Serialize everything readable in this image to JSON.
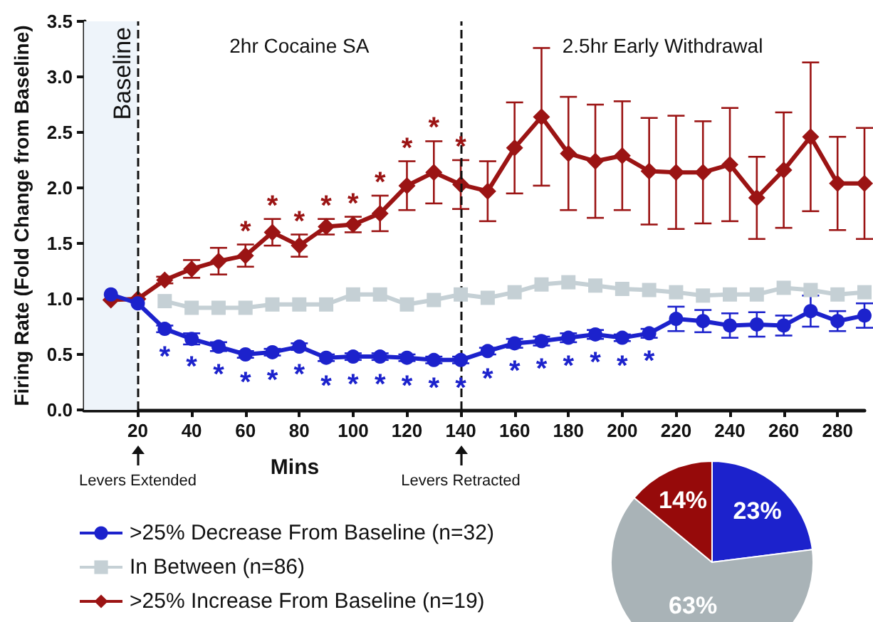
{
  "chart_data": [
    {
      "type": "line",
      "xlabel": "Mins",
      "ylabel": "Firing Rate (Fold Change from Baseline)",
      "x": [
        10,
        20,
        30,
        40,
        50,
        60,
        70,
        80,
        90,
        100,
        110,
        120,
        130,
        140,
        150,
        160,
        170,
        180,
        190,
        200,
        210,
        220,
        230,
        240,
        250,
        260,
        270,
        280,
        290
      ],
      "series": [
        {
          "name": ">25% Decrease From Baseline (n=32)",
          "color": "#1c22cc",
          "marker": "circle",
          "values": [
            1.04,
            0.96,
            0.73,
            0.64,
            0.57,
            0.5,
            0.52,
            0.57,
            0.47,
            0.48,
            0.48,
            0.47,
            0.45,
            0.45,
            0.53,
            0.6,
            0.62,
            0.65,
            0.68,
            0.65,
            0.69,
            0.82,
            0.8,
            0.76,
            0.77,
            0.76,
            0.89,
            0.8,
            0.85
          ],
          "errors": [
            null,
            null,
            0.03,
            0.05,
            0.04,
            0.03,
            0.03,
            0.03,
            0.03,
            0.03,
            0.03,
            0.03,
            0.03,
            0.03,
            0.03,
            0.04,
            0.04,
            0.04,
            0.04,
            0.03,
            0.04,
            0.11,
            0.1,
            0.11,
            0.11,
            0.09,
            0.14,
            0.09,
            0.11
          ]
        },
        {
          "name": "In Between (n=86)",
          "color": "#c5d0d5",
          "marker": "square",
          "values": [
            null,
            null,
            0.98,
            0.92,
            0.92,
            0.92,
            0.95,
            0.95,
            0.95,
            1.04,
            1.04,
            0.95,
            0.99,
            1.04,
            1.01,
            1.06,
            1.13,
            1.15,
            1.12,
            1.09,
            1.08,
            1.06,
            1.03,
            1.04,
            1.04,
            1.1,
            1.08,
            1.04,
            1.06
          ]
        },
        {
          "name": ">25% Increase From Baseline (n=19)",
          "color": "#9b1414",
          "marker": "diamond",
          "values": [
            0.99,
            1.0,
            1.17,
            1.27,
            1.34,
            1.39,
            1.6,
            1.48,
            1.65,
            1.67,
            1.77,
            2.02,
            2.14,
            2.03,
            1.97,
            2.36,
            2.64,
            2.31,
            2.24,
            2.29,
            2.15,
            2.14,
            2.14,
            2.21,
            1.91,
            2.16,
            2.46,
            2.04,
            2.04
          ],
          "errors": [
            null,
            null,
            0.03,
            0.08,
            0.12,
            0.1,
            0.12,
            0.1,
            0.07,
            0.07,
            0.16,
            0.22,
            0.28,
            0.22,
            0.27,
            0.41,
            0.62,
            0.51,
            0.51,
            0.49,
            0.48,
            0.51,
            0.46,
            0.51,
            0.37,
            0.52,
            0.67,
            0.42,
            0.5
          ]
        }
      ],
      "xlim": [
        0,
        290
      ],
      "xticks": [
        20,
        40,
        60,
        80,
        100,
        120,
        140,
        160,
        180,
        200,
        220,
        240,
        260,
        280
      ],
      "ylim": [
        0,
        3.5
      ],
      "yticks": [
        {
          "value": 0,
          "label": "0.0"
        },
        0.5,
        {
          "value": 1,
          "label": "1.0"
        },
        1.5,
        {
          "value": 2,
          "label": "2.0"
        },
        2.5,
        {
          "value": 3,
          "label": "3.0"
        },
        3.5
      ],
      "ref_lines": [
        {
          "axis": "x",
          "value": 20,
          "line_style": "dashed"
        },
        {
          "axis": "x",
          "value": 140,
          "line_style": "dashed"
        }
      ],
      "bands": [
        {
          "axis": "x",
          "from": 0,
          "to": 20,
          "label": "Baseline",
          "color": "#eef4fa"
        }
      ],
      "legend": "bottom left",
      "grid": false,
      "line_style": "solid",
      "annotations": [
        "2hr Cocaine SA",
        "2.5hr Early Withdrawal",
        "Levers Extended",
        "Levers Retracted",
        {
          "text": "*",
          "x": 60,
          "y": 1.39
        },
        {
          "text": "*",
          "x": 70,
          "y": 1.6
        },
        {
          "text": "*",
          "x": 80,
          "y": 1.48
        },
        {
          "text": "*",
          "x": 90,
          "y": 1.65
        },
        {
          "text": "*",
          "x": 100,
          "y": 1.67
        },
        {
          "text": "*",
          "x": 110,
          "y": 1.77
        },
        {
          "text": "*",
          "x": 120,
          "y": 2.02
        },
        {
          "text": "*",
          "x": 130,
          "y": 2.14
        },
        {
          "text": "*",
          "x": 140,
          "y": 2.03
        },
        {
          "text": "*",
          "x": 30,
          "y": 0.73
        },
        {
          "text": "*",
          "x": 40,
          "y": 0.64
        },
        {
          "text": "*",
          "x": 50,
          "y": 0.57
        },
        {
          "text": "*",
          "x": 60,
          "y": 0.5
        },
        {
          "text": "*",
          "x": 70,
          "y": 0.52
        },
        {
          "text": "*",
          "x": 80,
          "y": 0.57
        },
        {
          "text": "*",
          "x": 90,
          "y": 0.47
        },
        {
          "text": "*",
          "x": 100,
          "y": 0.48
        },
        {
          "text": "*",
          "x": 110,
          "y": 0.48
        },
        {
          "text": "*",
          "x": 120,
          "y": 0.47
        },
        {
          "text": "*",
          "x": 130,
          "y": 0.45
        },
        {
          "text": "*",
          "x": 140,
          "y": 0.45
        },
        {
          "text": "*",
          "x": 150,
          "y": 0.53
        },
        {
          "text": "*",
          "x": 160,
          "y": 0.6
        },
        {
          "text": "*",
          "x": 170,
          "y": 0.62
        },
        {
          "text": "*",
          "x": 180,
          "y": 0.65
        },
        {
          "text": "*",
          "x": 190,
          "y": 0.68
        },
        {
          "text": "*",
          "x": 200,
          "y": 0.65
        },
        {
          "text": "*",
          "x": 210,
          "y": 0.69
        }
      ]
    },
    {
      "type": "pie",
      "categories": [
        null,
        null,
        null
      ],
      "values": [
        23,
        63,
        14
      ],
      "colors": [
        "#1c22cc",
        "#a9b3b7",
        "#960a0a"
      ],
      "value_labels": [
        "23%",
        "63%",
        "14%"
      ]
    }
  ]
}
